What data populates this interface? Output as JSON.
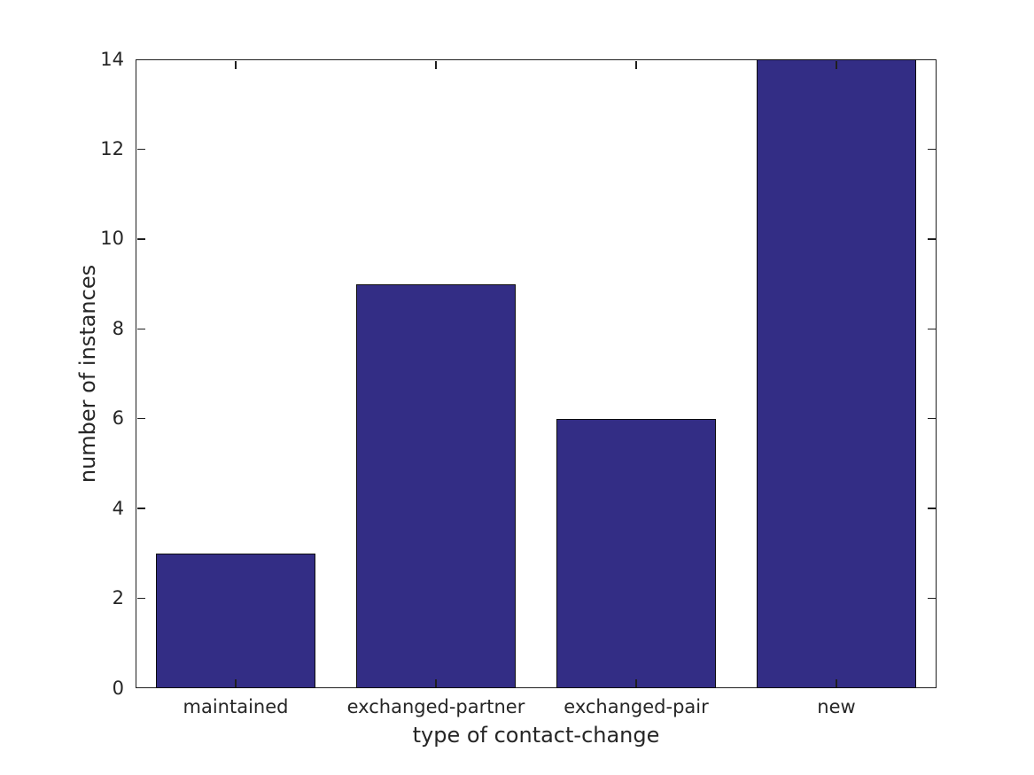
{
  "chart_data": {
    "type": "bar",
    "title": "",
    "xlabel": "type of contact-change",
    "ylabel": "number of instances",
    "categories": [
      "maintained",
      "exchanged-partner",
      "exchanged-pair",
      "new"
    ],
    "values": [
      3,
      9,
      6,
      14
    ],
    "yticks": [
      0,
      2,
      4,
      6,
      8,
      10,
      12,
      14
    ],
    "ylim": [
      0,
      14
    ],
    "xlim": [
      0.5,
      4.5
    ],
    "bar_width_fraction": 0.8,
    "grid": false,
    "legend": null,
    "box": true,
    "tick_direction": "in",
    "bar_color": "#332d85",
    "bar_edge_color": "#0d0d0d",
    "axis_color": "#1f1f1f",
    "text_color": "#262626",
    "background_color": "#ffffff"
  }
}
